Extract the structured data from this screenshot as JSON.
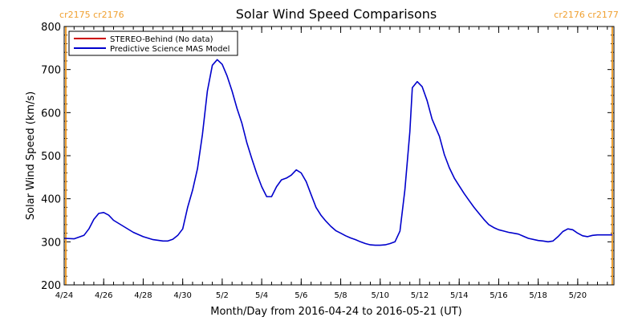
{
  "chart_data": {
    "type": "line",
    "title": "Solar Wind Speed Comparisons",
    "xlabel": "Month/Day from 2016-04-24 to 2016-05-21 (UT)",
    "ylabel": "Solar Wind Speed (km/s)",
    "ylim": [
      200,
      800
    ],
    "yticks": [
      "200",
      "300",
      "400",
      "500",
      "600",
      "700",
      "800"
    ],
    "xlim": [
      "2016-04-24",
      "2016-05-21T20:00"
    ],
    "xticks": [
      {
        "date": "2016-04-24",
        "label": "4/24"
      },
      {
        "date": "2016-04-26",
        "label": "4/26"
      },
      {
        "date": "2016-04-28",
        "label": "4/28"
      },
      {
        "date": "2016-04-30",
        "label": "4/30"
      },
      {
        "date": "2016-05-02",
        "label": "5/2"
      },
      {
        "date": "2016-05-04",
        "label": "5/4"
      },
      {
        "date": "2016-05-06",
        "label": "5/6"
      },
      {
        "date": "2016-05-08",
        "label": "5/8"
      },
      {
        "date": "2016-05-10",
        "label": "5/10"
      },
      {
        "date": "2016-05-12",
        "label": "5/12"
      },
      {
        "date": "2016-05-14",
        "label": "5/14"
      },
      {
        "date": "2016-05-16",
        "label": "5/16"
      },
      {
        "date": "2016-05-18",
        "label": "5/18"
      },
      {
        "date": "2016-05-20",
        "label": "5/20"
      }
    ],
    "markers": [
      {
        "date": "2016-04-24T02:00",
        "label": "cr2175 cr2176",
        "color": "#f0a030",
        "label_align": "start"
      },
      {
        "date": "2016-05-21T18:00",
        "label": "cr2176 cr2177",
        "color": "#f0a030",
        "label_align": "end"
      }
    ],
    "legend": {
      "position": "top-left",
      "entries": [
        {
          "label": "STEREO-Behind (No data)",
          "color": "#cc0000"
        },
        {
          "label": "Predictive Science MAS Model",
          "color": "#0000cc"
        }
      ]
    },
    "series": [
      {
        "name": "Predictive Science MAS Model",
        "color": "#0000cc",
        "points": [
          [
            "2016-04-24T00:00",
            308
          ],
          [
            "2016-04-24T12:00",
            307
          ],
          [
            "2016-04-25T00:00",
            315
          ],
          [
            "2016-04-25T06:00",
            330
          ],
          [
            "2016-04-25T12:00",
            352
          ],
          [
            "2016-04-25T18:00",
            366
          ],
          [
            "2016-04-26T00:00",
            368
          ],
          [
            "2016-04-26T06:00",
            362
          ],
          [
            "2016-04-26T12:00",
            350
          ],
          [
            "2016-04-27T00:00",
            336
          ],
          [
            "2016-04-27T12:00",
            322
          ],
          [
            "2016-04-28T00:00",
            312
          ],
          [
            "2016-04-28T12:00",
            305
          ],
          [
            "2016-04-29T00:00",
            302
          ],
          [
            "2016-04-29T06:00",
            302
          ],
          [
            "2016-04-29T12:00",
            306
          ],
          [
            "2016-04-29T18:00",
            315
          ],
          [
            "2016-04-30T00:00",
            330
          ],
          [
            "2016-04-30T06:00",
            380
          ],
          [
            "2016-04-30T12:00",
            420
          ],
          [
            "2016-04-30T18:00",
            470
          ],
          [
            "2016-05-01T00:00",
            550
          ],
          [
            "2016-05-01T06:00",
            650
          ],
          [
            "2016-05-01T12:00",
            710
          ],
          [
            "2016-05-01T18:00",
            723
          ],
          [
            "2016-05-02T00:00",
            712
          ],
          [
            "2016-05-02T06:00",
            685
          ],
          [
            "2016-05-02T12:00",
            650
          ],
          [
            "2016-05-02T18:00",
            610
          ],
          [
            "2016-05-03T00:00",
            575
          ],
          [
            "2016-05-03T06:00",
            530
          ],
          [
            "2016-05-03T12:00",
            493
          ],
          [
            "2016-05-03T18:00",
            458
          ],
          [
            "2016-05-04T00:00",
            428
          ],
          [
            "2016-05-04T06:00",
            405
          ],
          [
            "2016-05-04T12:00",
            405
          ],
          [
            "2016-05-04T18:00",
            428
          ],
          [
            "2016-05-05T00:00",
            444
          ],
          [
            "2016-05-05T06:00",
            448
          ],
          [
            "2016-05-05T12:00",
            455
          ],
          [
            "2016-05-05T18:00",
            467
          ],
          [
            "2016-05-06T00:00",
            460
          ],
          [
            "2016-05-06T06:00",
            440
          ],
          [
            "2016-05-06T12:00",
            410
          ],
          [
            "2016-05-06T18:00",
            380
          ],
          [
            "2016-05-07T00:00",
            362
          ],
          [
            "2016-05-07T06:00",
            348
          ],
          [
            "2016-05-07T12:00",
            336
          ],
          [
            "2016-05-07T18:00",
            326
          ],
          [
            "2016-05-08T00:00",
            320
          ],
          [
            "2016-05-08T06:00",
            314
          ],
          [
            "2016-05-08T12:00",
            309
          ],
          [
            "2016-05-08T18:00",
            305
          ],
          [
            "2016-05-09T00:00",
            300
          ],
          [
            "2016-05-09T06:00",
            296
          ],
          [
            "2016-05-09T12:00",
            293
          ],
          [
            "2016-05-09T18:00",
            292
          ],
          [
            "2016-05-10T00:00",
            292
          ],
          [
            "2016-05-10T06:00",
            293
          ],
          [
            "2016-05-10T12:00",
            296
          ],
          [
            "2016-05-10T18:00",
            300
          ],
          [
            "2016-05-11T00:00",
            325
          ],
          [
            "2016-05-11T06:00",
            420
          ],
          [
            "2016-05-11T12:00",
            555
          ],
          [
            "2016-05-11T15:00",
            658
          ],
          [
            "2016-05-11T21:00",
            672
          ],
          [
            "2016-05-12T03:00",
            660
          ],
          [
            "2016-05-12T09:00",
            628
          ],
          [
            "2016-05-12T15:00",
            585
          ],
          [
            "2016-05-13T00:00",
            545
          ],
          [
            "2016-05-13T06:00",
            502
          ],
          [
            "2016-05-13T12:00",
            472
          ],
          [
            "2016-05-13T18:00",
            448
          ],
          [
            "2016-05-14T00:00",
            430
          ],
          [
            "2016-05-14T06:00",
            412
          ],
          [
            "2016-05-14T12:00",
            396
          ],
          [
            "2016-05-14T18:00",
            380
          ],
          [
            "2016-05-15T00:00",
            366
          ],
          [
            "2016-05-15T06:00",
            352
          ],
          [
            "2016-05-15T12:00",
            340
          ],
          [
            "2016-05-15T18:00",
            333
          ],
          [
            "2016-05-16T00:00",
            328
          ],
          [
            "2016-05-16T06:00",
            325
          ],
          [
            "2016-05-16T12:00",
            322
          ],
          [
            "2016-05-17T00:00",
            318
          ],
          [
            "2016-05-17T06:00",
            313
          ],
          [
            "2016-05-17T12:00",
            308
          ],
          [
            "2016-05-18T00:00",
            303
          ],
          [
            "2016-05-18T06:00",
            302
          ],
          [
            "2016-05-18T12:00",
            300
          ],
          [
            "2016-05-18T18:00",
            302
          ],
          [
            "2016-05-19T00:00",
            312
          ],
          [
            "2016-05-19T06:00",
            324
          ],
          [
            "2016-05-19T12:00",
            330
          ],
          [
            "2016-05-19T18:00",
            328
          ],
          [
            "2016-05-20T00:00",
            320
          ],
          [
            "2016-05-20T06:00",
            314
          ],
          [
            "2016-05-20T12:00",
            312
          ],
          [
            "2016-05-20T18:00",
            315
          ],
          [
            "2016-05-21T00:00",
            316
          ],
          [
            "2016-05-21T18:00",
            316
          ]
        ]
      }
    ]
  }
}
